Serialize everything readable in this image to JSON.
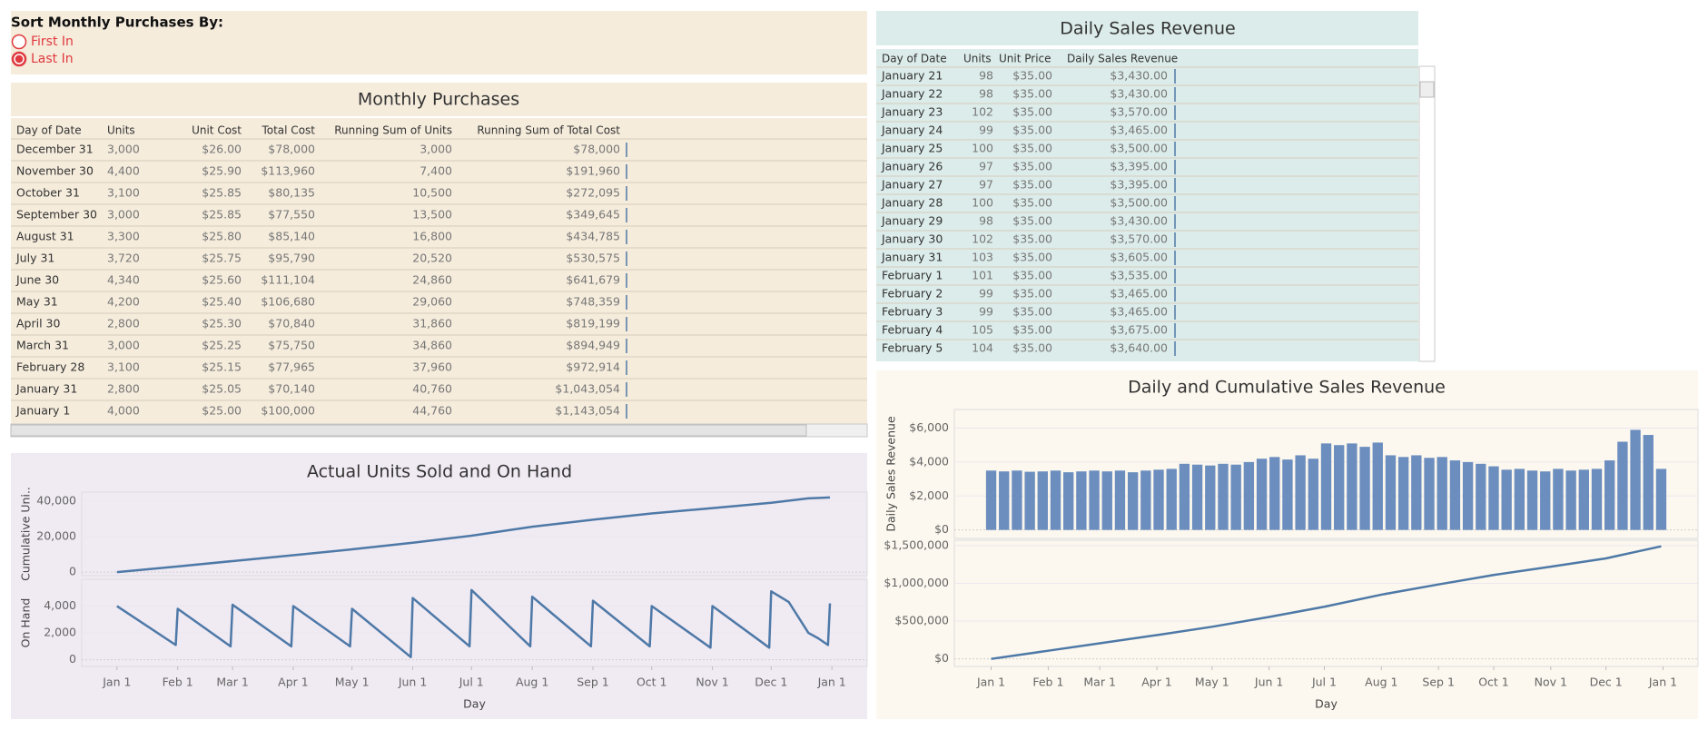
{
  "parameter": {
    "title": "Sort Monthly Purchases By:",
    "options": [
      "First In",
      "Last In"
    ],
    "selected": "Last In"
  },
  "monthly_purchases": {
    "title": "Monthly Purchases",
    "columns": [
      "Day of Date",
      "Units",
      "Unit Cost",
      "Total Cost",
      "Running Sum of Units",
      "Running Sum of Total Cost"
    ],
    "rows": [
      [
        "December 31",
        "3,000",
        "$26.00",
        "$78,000",
        "3,000",
        "$78,000"
      ],
      [
        "November 30",
        "4,400",
        "$25.90",
        "$113,960",
        "7,400",
        "$191,960"
      ],
      [
        "October 31",
        "3,100",
        "$25.85",
        "$80,135",
        "10,500",
        "$272,095"
      ],
      [
        "September 30",
        "3,000",
        "$25.85",
        "$77,550",
        "13,500",
        "$349,645"
      ],
      [
        "August 31",
        "3,300",
        "$25.80",
        "$85,140",
        "16,800",
        "$434,785"
      ],
      [
        "July 31",
        "3,720",
        "$25.75",
        "$95,790",
        "20,520",
        "$530,575"
      ],
      [
        "June 30",
        "4,340",
        "$25.60",
        "$111,104",
        "24,860",
        "$641,679"
      ],
      [
        "May 31",
        "4,200",
        "$25.40",
        "$106,680",
        "29,060",
        "$748,359"
      ],
      [
        "April 30",
        "2,800",
        "$25.30",
        "$70,840",
        "31,860",
        "$819,199"
      ],
      [
        "March 31",
        "3,000",
        "$25.25",
        "$75,750",
        "34,860",
        "$894,949"
      ],
      [
        "February 28",
        "3,100",
        "$25.15",
        "$77,965",
        "37,960",
        "$972,914"
      ],
      [
        "January 31",
        "2,800",
        "$25.05",
        "$70,140",
        "40,760",
        "$1,043,054"
      ],
      [
        "January 1",
        "4,000",
        "$25.00",
        "$100,000",
        "44,760",
        "$1,143,054"
      ]
    ]
  },
  "daily_sales": {
    "title": "Daily Sales Revenue",
    "columns": [
      "Day of Date",
      "Units",
      "Unit Price",
      "Daily Sales Revenue"
    ],
    "rows": [
      [
        "January 21",
        "98",
        "$35.00",
        "$3,430.00"
      ],
      [
        "January 22",
        "98",
        "$35.00",
        "$3,430.00"
      ],
      [
        "January 23",
        "102",
        "$35.00",
        "$3,570.00"
      ],
      [
        "January 24",
        "99",
        "$35.00",
        "$3,465.00"
      ],
      [
        "January 25",
        "100",
        "$35.00",
        "$3,500.00"
      ],
      [
        "January 26",
        "97",
        "$35.00",
        "$3,395.00"
      ],
      [
        "January 27",
        "97",
        "$35.00",
        "$3,395.00"
      ],
      [
        "January 28",
        "100",
        "$35.00",
        "$3,500.00"
      ],
      [
        "January 29",
        "98",
        "$35.00",
        "$3,430.00"
      ],
      [
        "January 30",
        "102",
        "$35.00",
        "$3,570.00"
      ],
      [
        "January 31",
        "103",
        "$35.00",
        "$3,605.00"
      ],
      [
        "February 1",
        "101",
        "$35.00",
        "$3,535.00"
      ],
      [
        "February 2",
        "99",
        "$35.00",
        "$3,465.00"
      ],
      [
        "February 3",
        "99",
        "$35.00",
        "$3,465.00"
      ],
      [
        "February 4",
        "105",
        "$35.00",
        "$3,675.00"
      ],
      [
        "February 5",
        "104",
        "$35.00",
        "$3,640.00"
      ]
    ]
  },
  "chart_data": [
    {
      "type": "line",
      "title": "Actual Units Sold and On Hand",
      "ylabel": "Cumulative Uni..",
      "color": "#4e79a7",
      "grid": true,
      "x": [
        1,
        32,
        60,
        91,
        121,
        152,
        182,
        213,
        244,
        274,
        305,
        335,
        354,
        365
      ],
      "values": [
        0,
        3200,
        6200,
        9500,
        12800,
        16500,
        20500,
        25500,
        29500,
        33000,
        36000,
        39000,
        41500,
        42000
      ],
      "xlim": [
        -17,
        384
      ],
      "ylim": [
        -2000,
        45000
      ],
      "yticks": [
        0,
        {
          "value": 20000,
          "label": "20,000"
        },
        {
          "value": 40000,
          "label": "40,000"
        }
      ]
    },
    {
      "type": "line",
      "ylabel": "On Hand",
      "xlabel": "Day",
      "color": "#4e79a7",
      "grid": true,
      "x": [
        1,
        31,
        32,
        59,
        60,
        90,
        91,
        120,
        121,
        151,
        152,
        181,
        182,
        212,
        213,
        243,
        244,
        273,
        274,
        304,
        305,
        334,
        335,
        344,
        354,
        359,
        364,
        365
      ],
      "values": [
        4000,
        1100,
        3800,
        1000,
        4100,
        1000,
        4000,
        1000,
        3800,
        200,
        4600,
        1000,
        5200,
        1000,
        4700,
        1000,
        4400,
        1000,
        4000,
        900,
        4000,
        900,
        5100,
        4300,
        2000,
        1600,
        1100,
        4200
      ],
      "xlim": [
        -17,
        384
      ],
      "ylim": [
        -500,
        6000
      ],
      "yticks": [
        0,
        {
          "value": 2000,
          "label": "2,000"
        },
        {
          "value": 4000,
          "label": "4,000"
        }
      ],
      "xticks": [
        {
          "value": 1,
          "label": "Jan 1"
        },
        {
          "value": 32,
          "label": "Feb 1"
        },
        {
          "value": 60,
          "label": "Mar 1"
        },
        {
          "value": 91,
          "label": "Apr 1"
        },
        {
          "value": 121,
          "label": "May 1"
        },
        {
          "value": 152,
          "label": "Jun 1"
        },
        {
          "value": 182,
          "label": "Jul 1"
        },
        {
          "value": 213,
          "label": "Aug 1"
        },
        {
          "value": 244,
          "label": "Sep 1"
        },
        {
          "value": 274,
          "label": "Oct 1"
        },
        {
          "value": 305,
          "label": "Nov 1"
        },
        {
          "value": 335,
          "label": "Dec 1"
        },
        {
          "value": 366,
          "label": "Jan 1"
        }
      ]
    },
    {
      "type": "bar",
      "title": "Daily and Cumulative Sales Revenue",
      "ylabel": "Daily Sales Revenue",
      "color": "#6c8ebf",
      "grid": true,
      "x": [
        1,
        8,
        15,
        22,
        29,
        36,
        43,
        50,
        57,
        64,
        71,
        78,
        85,
        92,
        99,
        106,
        113,
        120,
        127,
        134,
        141,
        148,
        155,
        162,
        169,
        176,
        183,
        190,
        197,
        204,
        211,
        218,
        225,
        232,
        239,
        246,
        253,
        260,
        267,
        274,
        281,
        288,
        295,
        302,
        309,
        316,
        323,
        330,
        337,
        344,
        351,
        358,
        365
      ],
      "values": [
        3500,
        3450,
        3500,
        3430,
        3450,
        3500,
        3400,
        3450,
        3500,
        3450,
        3500,
        3400,
        3500,
        3550,
        3600,
        3900,
        3850,
        3800,
        3900,
        3850,
        4000,
        4200,
        4300,
        4150,
        4400,
        4200,
        5100,
        5000,
        5100,
        4900,
        5150,
        4400,
        4300,
        4400,
        4250,
        4300,
        4100,
        4000,
        3900,
        3750,
        3550,
        3600,
        3500,
        3450,
        3600,
        3500,
        3550,
        3600,
        4100,
        5200,
        5900,
        5600,
        3600
      ],
      "xlim": [
        -19,
        385
      ],
      "ylim": [
        -500,
        7100
      ],
      "yticks": [
        {
          "value": 0,
          "label": "$0"
        },
        {
          "value": 2000,
          "label": "$2,000"
        },
        {
          "value": 4000,
          "label": "$4,000"
        },
        {
          "value": 6000,
          "label": "$6,000"
        }
      ]
    },
    {
      "type": "line",
      "xlabel": "Day",
      "color": "#4e79a7",
      "grid": true,
      "x": [
        1,
        32,
        60,
        91,
        121,
        152,
        182,
        213,
        244,
        274,
        305,
        335,
        350,
        365
      ],
      "values": [
        0,
        108000,
        206000,
        315000,
        425000,
        555000,
        690000,
        850000,
        985000,
        1110000,
        1220000,
        1330000,
        1410000,
        1490000
      ],
      "xlim": [
        -19,
        385
      ],
      "ylim": [
        -100000,
        1570000
      ],
      "yticks": [
        {
          "value": 0,
          "label": "$0"
        },
        {
          "value": 500000,
          "label": "$500,000"
        },
        {
          "value": 1000000,
          "label": "$1,000,000"
        },
        {
          "value": 1500000,
          "label": "$1,500,000"
        }
      ],
      "xticks": [
        {
          "value": 1,
          "label": "Jan 1"
        },
        {
          "value": 32,
          "label": "Feb 1"
        },
        {
          "value": 60,
          "label": "Mar 1"
        },
        {
          "value": 91,
          "label": "Apr 1"
        },
        {
          "value": 121,
          "label": "May 1"
        },
        {
          "value": 152,
          "label": "Jun 1"
        },
        {
          "value": 182,
          "label": "Jul 1"
        },
        {
          "value": 213,
          "label": "Aug 1"
        },
        {
          "value": 244,
          "label": "Sep 1"
        },
        {
          "value": 274,
          "label": "Oct 1"
        },
        {
          "value": 305,
          "label": "Nov 1"
        },
        {
          "value": 335,
          "label": "Dec 1"
        },
        {
          "value": 366,
          "label": "Jan 1"
        }
      ]
    }
  ]
}
